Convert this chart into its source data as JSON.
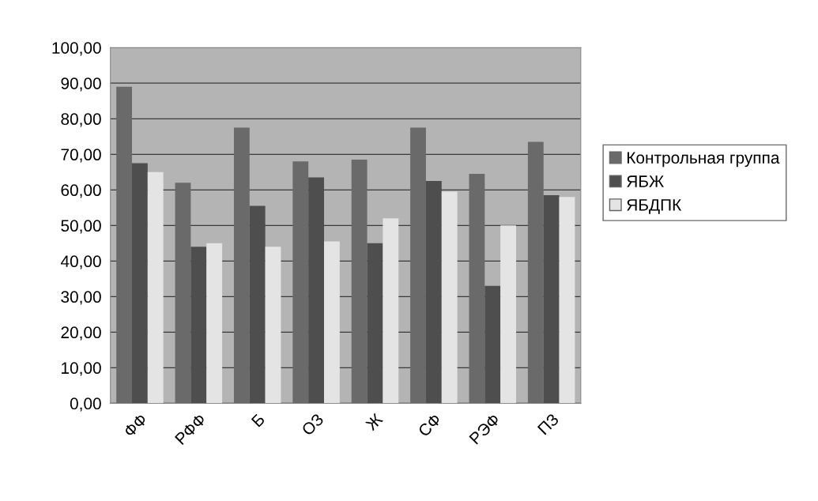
{
  "chart_data": {
    "type": "bar",
    "categories": [
      "ФФ",
      "РФФ",
      "Б",
      "ОЗ",
      "Ж",
      "СФ",
      "РЭФ",
      "ПЗ"
    ],
    "series": [
      {
        "name": "Контрольная группа",
        "color": "#6a6a6a",
        "values": [
          89,
          62,
          77.5,
          68,
          68.5,
          77.5,
          64.5,
          73.5
        ]
      },
      {
        "name": "ЯБЖ",
        "color": "#4e4e4e",
        "values": [
          67.5,
          44,
          55.5,
          63.5,
          45,
          62.5,
          33,
          58.5
        ]
      },
      {
        "name": "ЯБДПК",
        "color": "#e4e4e4",
        "values": [
          65,
          45,
          44,
          45.5,
          52,
          59.5,
          50,
          58
        ]
      }
    ],
    "ylim": [
      0,
      100
    ],
    "yticks": [
      {
        "value": 0,
        "label": "0,00"
      },
      {
        "value": 10,
        "label": "10,00"
      },
      {
        "value": 20,
        "label": "20,00"
      },
      {
        "value": 30,
        "label": "30,00"
      },
      {
        "value": 40,
        "label": "40,00"
      },
      {
        "value": 50,
        "label": "50,00"
      },
      {
        "value": 60,
        "label": "60,00"
      },
      {
        "value": 70,
        "label": "70,00"
      },
      {
        "value": 80,
        "label": "80,00"
      },
      {
        "value": 90,
        "label": "90,00"
      },
      {
        "value": 100,
        "label": "100,00"
      }
    ],
    "grid": "y",
    "legend": "right"
  }
}
